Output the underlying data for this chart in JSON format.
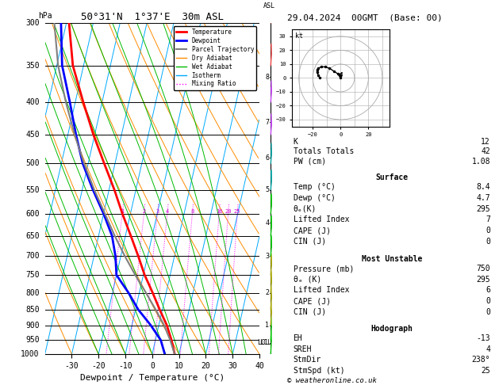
{
  "title_left": "50°31'N  1°37'E  30m ASL",
  "title_right": "29.04.2024  00GMT  (Base: 00)",
  "xlabel": "Dewpoint / Temperature (°C)",
  "pressure_levels": [
    300,
    350,
    400,
    450,
    500,
    550,
    600,
    650,
    700,
    750,
    800,
    850,
    900,
    950,
    1000
  ],
  "x_min": -40,
  "x_max": 40,
  "p_min": 300,
  "p_max": 1000,
  "skew_factor": 28.0,
  "temp_profile": {
    "pressure": [
      1000,
      950,
      900,
      850,
      800,
      750,
      700,
      650,
      600,
      550,
      500,
      450,
      400,
      350,
      300
    ],
    "temperature": [
      8.4,
      6.0,
      3.0,
      -1.0,
      -5.0,
      -9.5,
      -13.5,
      -18.0,
      -23.0,
      -28.0,
      -34.0,
      -40.5,
      -47.0,
      -54.0,
      -59.0
    ]
  },
  "dewp_profile": {
    "pressure": [
      1000,
      950,
      900,
      850,
      800,
      750,
      700,
      650,
      600,
      550,
      500,
      450,
      400,
      350,
      300
    ],
    "temperature": [
      4.7,
      2.0,
      -3.0,
      -9.0,
      -14.0,
      -20.0,
      -22.0,
      -25.0,
      -30.0,
      -36.0,
      -42.0,
      -47.0,
      -52.0,
      -58.0,
      -62.0
    ]
  },
  "parcel_profile": {
    "pressure": [
      1000,
      950,
      900,
      850,
      800,
      750,
      700,
      650,
      600,
      550,
      500,
      450,
      400,
      350,
      300
    ],
    "temperature": [
      8.4,
      5.5,
      2.0,
      -2.5,
      -7.5,
      -13.0,
      -18.5,
      -24.0,
      -29.5,
      -35.5,
      -41.5,
      -47.5,
      -53.5,
      -59.5,
      -64.5
    ]
  },
  "lcl_pressure": 960,
  "mixing_ratio_values": [
    1,
    2,
    3,
    4,
    8,
    16,
    20,
    25
  ],
  "km_ticks": [
    1,
    2,
    3,
    4,
    5,
    6,
    7,
    8
  ],
  "km_pressures": [
    900,
    800,
    700,
    620,
    550,
    490,
    430,
    365
  ],
  "colors": {
    "temperature": "#ff0000",
    "dewpoint": "#0000ff",
    "parcel": "#808080",
    "dry_adiabat": "#ff8c00",
    "wet_adiabat": "#00bb00",
    "isotherm": "#00aaff",
    "mixing_ratio": "#ff00ff",
    "background": "#ffffff"
  },
  "legend_entries": [
    {
      "label": "Temperature",
      "color": "#ff0000",
      "lw": 2,
      "ls": "-"
    },
    {
      "label": "Dewpoint",
      "color": "#0000ff",
      "lw": 2,
      "ls": "-"
    },
    {
      "label": "Parcel Trajectory",
      "color": "#808080",
      "lw": 1.5,
      "ls": "-"
    },
    {
      "label": "Dry Adiabat",
      "color": "#ff8c00",
      "lw": 1,
      "ls": "-"
    },
    {
      "label": "Wet Adiabat",
      "color": "#00bb00",
      "lw": 1,
      "ls": "-"
    },
    {
      "label": "Isotherm",
      "color": "#00aaff",
      "lw": 1,
      "ls": "-"
    },
    {
      "label": "Mixing Ratio",
      "color": "#ff00ff",
      "lw": 1,
      "ls": ":"
    }
  ],
  "info_box": {
    "K": "12",
    "Totals Totals": "42",
    "PW (cm)": "1.08",
    "Surface_Temp": "8.4",
    "Surface_Dewp": "4.7",
    "Surface_theta_e": "295",
    "Surface_LI": "7",
    "Surface_CAPE": "0",
    "Surface_CIN": "0",
    "MU_Pressure": "750",
    "MU_theta_e": "295",
    "MU_LI": "6",
    "MU_CAPE": "0",
    "MU_CIN": "0",
    "Hodo_EH": "-13",
    "Hodo_SREH": "4",
    "Hodo_StmDir": "238°",
    "Hodo_StmSpd": "25"
  },
  "wind_barbs": {
    "pressures": [
      1000,
      950,
      900,
      850,
      800,
      750,
      700,
      650,
      600,
      550,
      500,
      450,
      400,
      350,
      300
    ],
    "speeds_kt": [
      10,
      12,
      15,
      18,
      20,
      22,
      24,
      24,
      22,
      20,
      18,
      16,
      15,
      14,
      14
    ],
    "dirs_deg": [
      230,
      232,
      234,
      236,
      238,
      240,
      242,
      244,
      245,
      245,
      244,
      242,
      240,
      238,
      236
    ],
    "barb_colors": [
      "#00cc00",
      "#00cc00",
      "#aaaa00",
      "#aaaa00",
      "#aaaa00",
      "#aaaa00",
      "#00cc00",
      "#00cc00",
      "#00cc00",
      "#00aaaa",
      "#00aaaa",
      "#cc44ff",
      "#cc44ff",
      "#ff4444",
      "#ff4444"
    ]
  },
  "hodograph_wind": {
    "u_hodo": [
      0,
      -2,
      -5,
      -8,
      -11,
      -14,
      -16,
      -17,
      -17,
      -16,
      -15
    ],
    "v_hodo": [
      0,
      3,
      5,
      7,
      8,
      8,
      7,
      6,
      4,
      2,
      0
    ]
  }
}
